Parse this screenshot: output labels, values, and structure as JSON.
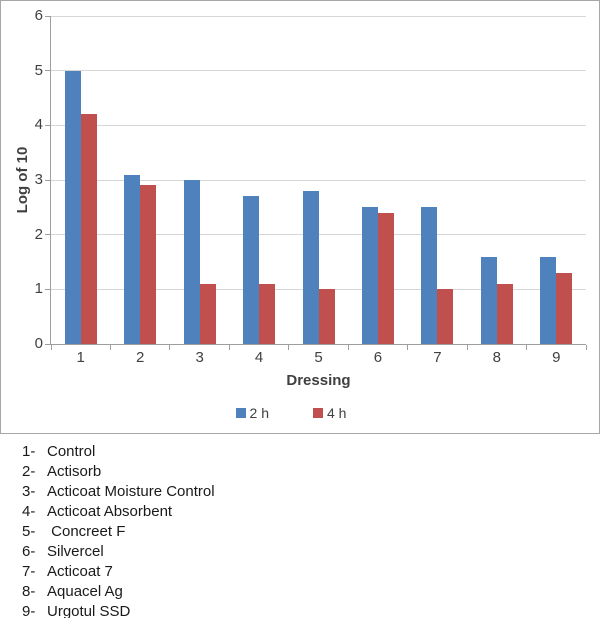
{
  "chart_data": {
    "type": "bar",
    "title": "",
    "xlabel": "Dressing",
    "ylabel": "Log of 10",
    "categories": [
      "1",
      "2",
      "3",
      "4",
      "5",
      "6",
      "7",
      "8",
      "9"
    ],
    "series": [
      {
        "name": "2 h",
        "color": "#4F81BD",
        "values": [
          5.0,
          3.1,
          3.0,
          2.7,
          2.8,
          2.5,
          2.5,
          1.6,
          1.6
        ]
      },
      {
        "name": "4 h",
        "color": "#C0504D",
        "values": [
          4.2,
          2.9,
          1.1,
          1.1,
          1.0,
          2.4,
          1.0,
          1.1,
          1.3
        ]
      }
    ],
    "ylim": [
      0,
      6
    ],
    "yticks": [
      0,
      1,
      2,
      3,
      4,
      5,
      6
    ],
    "grid": true,
    "legend_position": "bottom",
    "legend": [
      "2 h",
      "4 h"
    ]
  },
  "colors": {
    "series_2h": "#4F81BD",
    "series_4h": "#C0504D",
    "gridline": "#D6D6D6",
    "axis": "#9E9E9E",
    "chart_border": "#A6A6A6"
  },
  "key": {
    "items": [
      {
        "num": "1-",
        "label": "Control"
      },
      {
        "num": "2-",
        "label": "Actisorb"
      },
      {
        "num": "3-",
        "label": "Acticoat Moisture Control"
      },
      {
        "num": "4-",
        "label": "Acticoat Absorbent"
      },
      {
        "num": "5-",
        "label": " Concreet F"
      },
      {
        "num": "6-",
        "label": "Silvercel"
      },
      {
        "num": "7-",
        "label": "Acticoat 7"
      },
      {
        "num": "8-",
        "label": "Aquacel Ag"
      },
      {
        "num": "9-",
        "label": "Urgotul SSD"
      }
    ]
  }
}
